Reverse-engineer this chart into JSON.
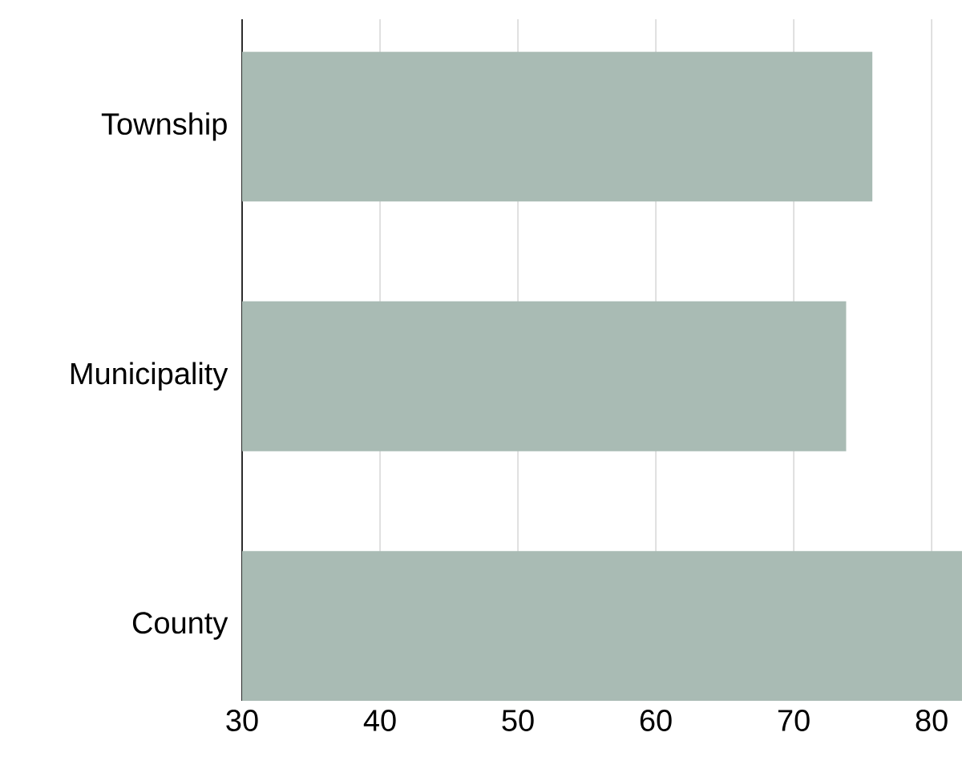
{
  "chart_data": {
    "type": "bar",
    "orientation": "horizontal",
    "categories": [
      "Township",
      "Municipality",
      "County"
    ],
    "values": [
      75.7,
      73.8,
      82.2
    ],
    "color": "#a9bbb4",
    "xlim": [
      30,
      82.2
    ],
    "xticks": [
      30,
      40,
      50,
      60,
      70,
      80
    ],
    "grid": "x"
  }
}
